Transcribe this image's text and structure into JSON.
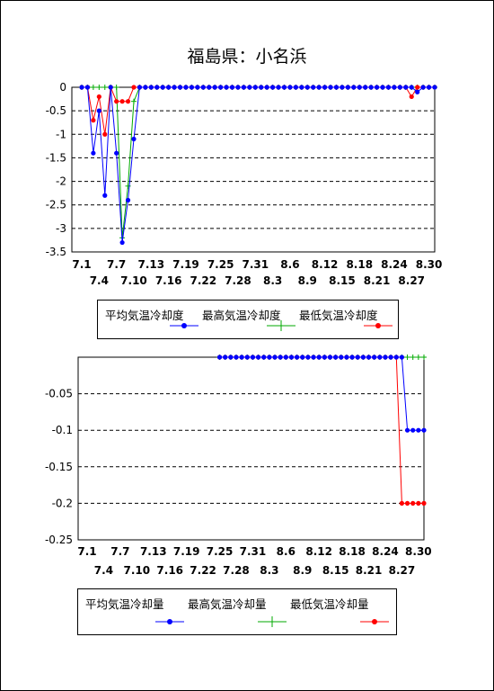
{
  "title": "福島県：小名浜",
  "colors": {
    "avg": "#0000FF",
    "max": "#00AA00",
    "min": "#FF0000",
    "grid": "#000000"
  },
  "chart_data": [
    {
      "type": "line",
      "x": [
        "7.1",
        "7.2",
        "7.3",
        "7.4",
        "7.5",
        "7.6",
        "7.7",
        "7.8",
        "7.9",
        "7.10",
        "7.11",
        "7.12",
        "7.13",
        "7.14",
        "7.15",
        "7.16",
        "7.17",
        "7.18",
        "7.19",
        "7.20",
        "7.21",
        "7.22",
        "7.23",
        "7.24",
        "7.25",
        "7.26",
        "7.27",
        "7.28",
        "7.29",
        "7.30",
        "7.31",
        "8.1",
        "8.2",
        "8.3",
        "8.4",
        "8.5",
        "8.6",
        "8.7",
        "8.8",
        "8.9",
        "8.10",
        "8.11",
        "8.12",
        "8.13",
        "8.14",
        "8.15",
        "8.16",
        "8.17",
        "8.18",
        "8.19",
        "8.20",
        "8.21",
        "8.22",
        "8.23",
        "8.24",
        "8.25",
        "8.26",
        "8.27",
        "8.28",
        "8.29",
        "8.30",
        "8.31"
      ],
      "tick_labels_row1": [
        "7.1",
        "7.7",
        "7.13",
        "7.19",
        "7.25",
        "7.31",
        "8.6",
        "8.12",
        "8.18",
        "8.24",
        "8.30"
      ],
      "tick_labels_row2": [
        "7.4",
        "7.10",
        "7.16",
        "7.22",
        "7.28",
        "8.3",
        "8.9",
        "8.15",
        "8.21",
        "8.27"
      ],
      "ylim": [
        -3.5,
        0
      ],
      "yticks": [
        "0",
        "-0.5",
        "-1",
        "-1.5",
        "-2",
        "-2.5",
        "-3",
        "-3.5"
      ],
      "grid": true,
      "series": [
        {
          "name": "平均気温冷却度",
          "values": [
            0,
            0,
            -1.4,
            -0.5,
            -2.3,
            0,
            -1.4,
            -3.3,
            -2.4,
            -1.1,
            0,
            0,
            0,
            0,
            0,
            0,
            0,
            0,
            0,
            0,
            0,
            0,
            0,
            0,
            0,
            0,
            0,
            0,
            0,
            0,
            0,
            0,
            0,
            0,
            0,
            0,
            0,
            0,
            0,
            0,
            0,
            0,
            0,
            0,
            0,
            0,
            0,
            0,
            0,
            0,
            0,
            0,
            0,
            0,
            0,
            0,
            0,
            0,
            -0.1,
            0,
            0,
            0
          ]
        },
        {
          "name": "最高気温冷却度",
          "values": [
            0,
            0,
            0,
            0,
            0,
            0,
            0,
            -3.2,
            -2.1,
            -0.3,
            0,
            0,
            0,
            0,
            0,
            0,
            0,
            0,
            0,
            0,
            0,
            0,
            0,
            0,
            0,
            0,
            0,
            0,
            0,
            0,
            0,
            0,
            0,
            0,
            0,
            0,
            0,
            0,
            0,
            0,
            0,
            0,
            0,
            0,
            0,
            0,
            0,
            0,
            0,
            0,
            0,
            0,
            0,
            0,
            0,
            0,
            0,
            0,
            0,
            0,
            0,
            0
          ]
        },
        {
          "name": "最低気温冷却度",
          "values": [
            0,
            0,
            -0.7,
            -0.2,
            -1.0,
            0,
            -0.3,
            -0.3,
            -0.3,
            0,
            0,
            0,
            0,
            0,
            0,
            0,
            0,
            0,
            0,
            0,
            0,
            0,
            0,
            0,
            0,
            0,
            0,
            0,
            0,
            0,
            0,
            0,
            0,
            0,
            0,
            0,
            0,
            0,
            0,
            0,
            0,
            0,
            0,
            0,
            0,
            0,
            0,
            0,
            0,
            0,
            0,
            0,
            0,
            0,
            0,
            0,
            0,
            -0.2,
            0,
            0,
            0,
            0
          ]
        }
      ]
    },
    {
      "type": "line",
      "x": [
        "7.1",
        "7.2",
        "7.3",
        "7.4",
        "7.5",
        "7.6",
        "7.7",
        "7.8",
        "7.9",
        "7.10",
        "7.11",
        "7.12",
        "7.13",
        "7.14",
        "7.15",
        "7.16",
        "7.17",
        "7.18",
        "7.19",
        "7.20",
        "7.21",
        "7.22",
        "7.23",
        "7.24",
        "7.25",
        "7.26",
        "7.27",
        "7.28",
        "7.29",
        "7.30",
        "7.31",
        "8.1",
        "8.2",
        "8.3",
        "8.4",
        "8.5",
        "8.6",
        "8.7",
        "8.8",
        "8.9",
        "8.10",
        "8.11",
        "8.12",
        "8.13",
        "8.14",
        "8.15",
        "8.16",
        "8.17",
        "8.18",
        "8.19",
        "8.20",
        "8.21",
        "8.22",
        "8.23",
        "8.24",
        "8.25",
        "8.26",
        "8.27",
        "8.28",
        "8.29",
        "8.30",
        "8.31"
      ],
      "tick_labels_row1": [
        "7.1",
        "7.7",
        "7.13",
        "7.19",
        "7.25",
        "7.31",
        "8.6",
        "8.12",
        "8.18",
        "8.24",
        "8.30"
      ],
      "tick_labels_row2": [
        "7.4",
        "7.10",
        "7.16",
        "7.22",
        "7.28",
        "8.3",
        "8.9",
        "8.15",
        "8.21",
        "8.27"
      ],
      "ylim": [
        -0.25,
        0
      ],
      "yticks": [
        "",
        "-0.05",
        "-0.1",
        "-0.15",
        "-0.2",
        "-0.25"
      ],
      "grid": true,
      "series": [
        {
          "name": "平均気温冷却量",
          "values": [
            null,
            null,
            null,
            null,
            null,
            null,
            null,
            null,
            null,
            null,
            null,
            null,
            null,
            null,
            null,
            null,
            null,
            null,
            null,
            null,
            null,
            null,
            null,
            null,
            0,
            0,
            0,
            0,
            0,
            0,
            0,
            0,
            0,
            0,
            0,
            0,
            0,
            0,
            0,
            0,
            0,
            0,
            0,
            0,
            0,
            0,
            0,
            0,
            0,
            0,
            0,
            0,
            0,
            0,
            0,
            0,
            0,
            0,
            -0.1,
            -0.1,
            -0.1,
            -0.1
          ]
        },
        {
          "name": "最高気温冷却量",
          "values": [
            null,
            null,
            null,
            null,
            null,
            null,
            null,
            null,
            null,
            null,
            null,
            null,
            null,
            null,
            null,
            null,
            null,
            null,
            null,
            null,
            null,
            null,
            null,
            null,
            0,
            0,
            0,
            0,
            0,
            0,
            0,
            0,
            0,
            0,
            0,
            0,
            0,
            0,
            0,
            0,
            0,
            0,
            0,
            0,
            0,
            0,
            0,
            0,
            0,
            0,
            0,
            0,
            0,
            0,
            0,
            0,
            0,
            0,
            0,
            0,
            0,
            0
          ]
        },
        {
          "name": "最低気温冷却量",
          "values": [
            null,
            null,
            null,
            null,
            null,
            null,
            null,
            null,
            null,
            null,
            null,
            null,
            null,
            null,
            null,
            null,
            null,
            null,
            null,
            null,
            null,
            null,
            null,
            null,
            0,
            0,
            0,
            0,
            0,
            0,
            0,
            0,
            0,
            0,
            0,
            0,
            0,
            0,
            0,
            0,
            0,
            0,
            0,
            0,
            0,
            0,
            0,
            0,
            0,
            0,
            0,
            0,
            0,
            0,
            0,
            0,
            0,
            -0.2,
            -0.2,
            -0.2,
            -0.2,
            -0.2
          ]
        }
      ]
    }
  ]
}
